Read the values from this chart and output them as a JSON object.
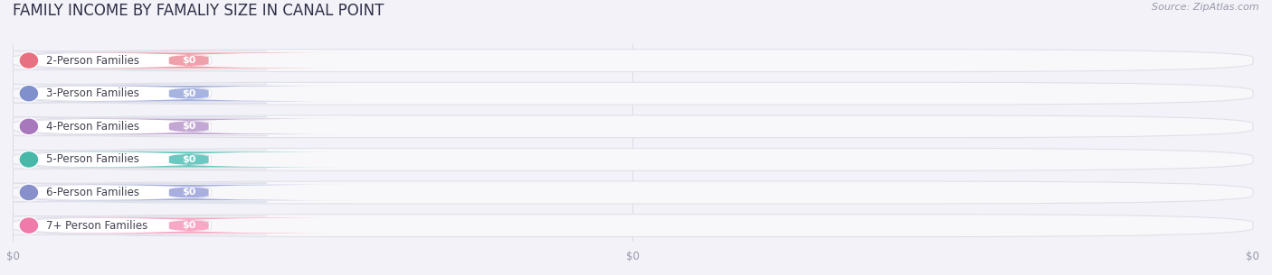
{
  "title": "FAMILY INCOME BY FAMALIY SIZE IN CANAL POINT",
  "source_text": "Source: ZipAtlas.com",
  "categories": [
    "2-Person Families",
    "3-Person Families",
    "4-Person Families",
    "5-Person Families",
    "6-Person Families",
    "7+ Person Families"
  ],
  "values": [
    0,
    0,
    0,
    0,
    0,
    0
  ],
  "bar_colors": [
    "#f0a0aa",
    "#a8b4e0",
    "#c4a8d4",
    "#6cc8c0",
    "#a8aee0",
    "#f8a8c4"
  ],
  "dot_colors": [
    "#e87080",
    "#8090cc",
    "#a878bc",
    "#48b8a8",
    "#8890cc",
    "#f07aaa"
  ],
  "background_color": "#f2f2f8",
  "bar_fill_color": "#f8f8fa",
  "bar_edge_color": "#e0e0ea",
  "label_color": "#404050",
  "value_label_color": "#ffffff",
  "bar_height": 0.68,
  "xlim": [
    0,
    1
  ],
  "xtick_labels": [
    "$0",
    "$0",
    "$0"
  ],
  "xtick_positions": [
    0.0,
    0.5,
    1.0
  ],
  "title_fontsize": 12,
  "label_fontsize": 8.5,
  "value_fontsize": 8,
  "source_fontsize": 8
}
